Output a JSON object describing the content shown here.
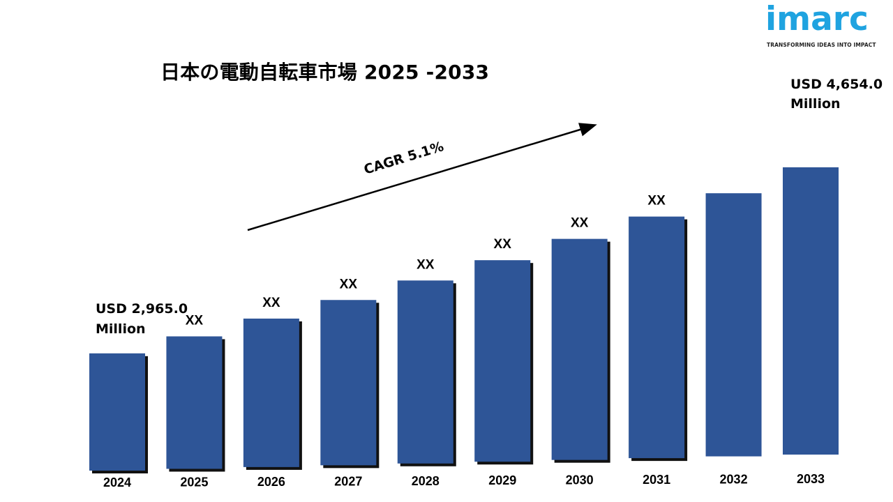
{
  "title": "日本の電動自転車市場 2025 -2033",
  "logo": {
    "name": "imarc",
    "tagline": "TRANSFORMING IDEAS INTO IMPACT"
  },
  "chart_data": {
    "type": "bar",
    "categories": [
      "2024",
      "2025",
      "2026",
      "2027",
      "2028",
      "2029",
      "2030",
      "2031",
      "2032",
      "2033"
    ],
    "values": [
      2965.0,
      3116,
      3275,
      3442,
      3618,
      3802,
      3996,
      4200,
      4414,
      4654.0
    ],
    "data_labels": [
      "",
      "XX",
      "XX",
      "XX",
      "XX",
      "XX",
      "XX",
      "XX",
      "",
      ""
    ],
    "start_label": [
      "USD 2,965.0",
      "Million"
    ],
    "end_label": [
      "USD 4,654.0",
      "Million"
    ],
    "annotation": "CAGR 5.1%",
    "bar_color": "#2e5597",
    "ylim": [
      1800,
      5000
    ],
    "grid": false
  }
}
